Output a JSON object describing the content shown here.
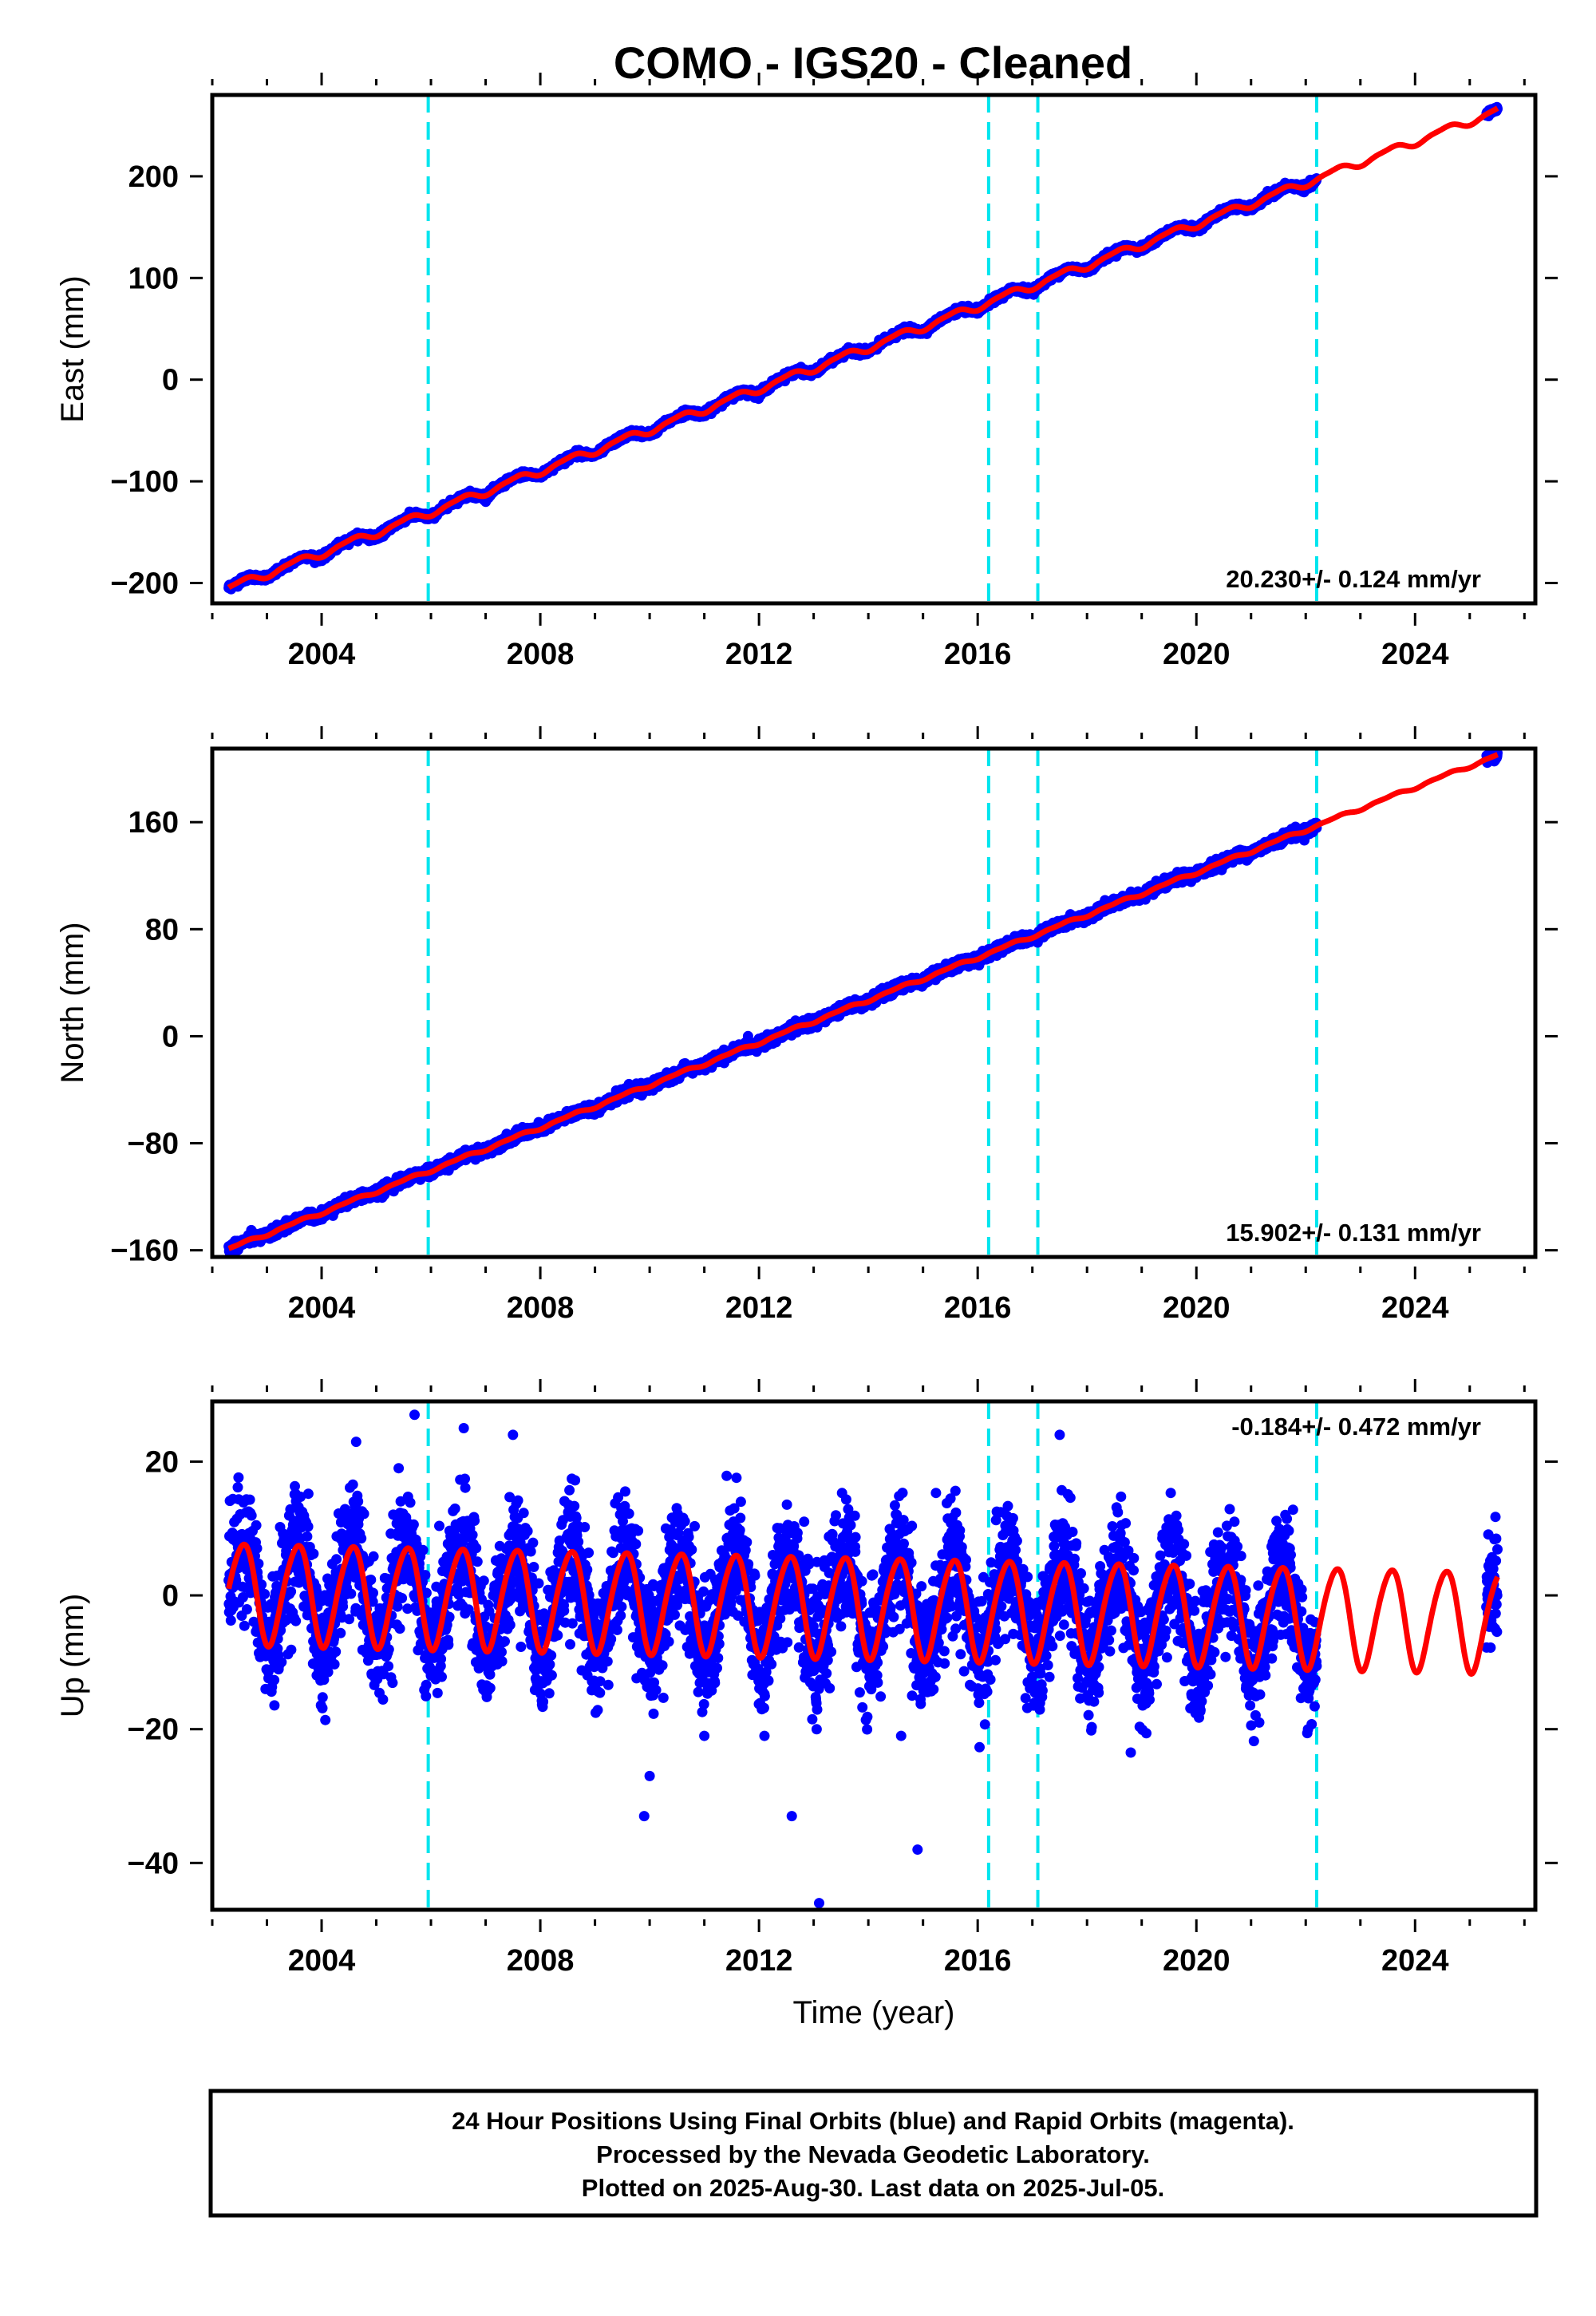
{
  "figure": {
    "title": "COMO  - IGS20 - Cleaned",
    "footer": {
      "lines": [
        "24 Hour Positions Using Final Orbits (blue) and Rapid Orbits (magenta).",
        "Processed by the Nevada Geodetic Laboratory.",
        "Plotted on 2025-Aug-30. Last data on 2025-Jul-05."
      ]
    }
  },
  "colors": {
    "data": "#0000ff",
    "model": "#ff0000",
    "break": "#00e5ee",
    "frame": "#000000"
  },
  "chart_data": [
    {
      "type": "scatter",
      "component": "east",
      "ylabel": "East (mm)",
      "xlabel": "",
      "xlim": [
        2002.0,
        2026.2
      ],
      "ylim": [
        -220,
        280
      ],
      "yticks": [
        -200,
        -100,
        0,
        100,
        200
      ],
      "xticks": [
        2004,
        2008,
        2012,
        2016,
        2020,
        2024
      ],
      "data_range": [
        2002.3,
        2025.51
      ],
      "model_range": [
        2002.3,
        2025.51
      ],
      "trend": {
        "start_value": -205,
        "rate_mm_per_yr": 20.23
      },
      "seasonal": {
        "annual_amplitude": 3.5,
        "semiannual_amplitude": 1.0
      },
      "noise": 1.5,
      "gap": [
        2022.2,
        2025.3
      ],
      "rate": "20.230+/- 0.124 mm/yr",
      "rate_position": "bottom-right",
      "breaks": [
        2005.95,
        2016.2,
        2017.1,
        2022.2
      ]
    },
    {
      "type": "scatter",
      "component": "north",
      "ylabel": "North (mm)",
      "xlabel": "",
      "xlim": [
        2002.0,
        2026.2
      ],
      "ylim": [
        -165,
        215
      ],
      "yticks": [
        -160,
        -80,
        0,
        80,
        160
      ],
      "xticks": [
        2004,
        2008,
        2012,
        2016,
        2020,
        2024
      ],
      "data_range": [
        2002.3,
        2025.51
      ],
      "model_range": [
        2002.3,
        2025.51
      ],
      "trend": {
        "start_value": -159,
        "rate_mm_per_yr": 15.902
      },
      "seasonal": {
        "annual_amplitude": 1.0,
        "semiannual_amplitude": 0.5
      },
      "noise": 1.8,
      "gap": [
        2022.2,
        2025.3
      ],
      "rate": "15.902+/- 0.131 mm/yr",
      "rate_position": "bottom-right",
      "breaks": [
        2005.95,
        2016.2,
        2017.1,
        2022.2
      ]
    },
    {
      "type": "scatter",
      "component": "up",
      "ylabel": "Up (mm)",
      "xlabel": "Time (year)",
      "xlim": [
        2002.0,
        2026.2
      ],
      "ylim": [
        -47,
        29
      ],
      "yticks": [
        -40,
        -20,
        0,
        20
      ],
      "xticks": [
        2004,
        2008,
        2012,
        2016,
        2020,
        2024
      ],
      "data_range": [
        2002.3,
        2025.51
      ],
      "model_range": [
        2002.3,
        2025.51
      ],
      "trend": {
        "start_value": 0.5,
        "rate_mm_per_yr": -0.184
      },
      "seasonal": {
        "annual_amplitude": 7.5,
        "semiannual_amplitude": 0.8
      },
      "noise": 4.5,
      "gap": [
        2022.2,
        2025.3
      ],
      "outliers": [
        [
          2005.7,
          27
        ],
        [
          2006.6,
          25
        ],
        [
          2010.0,
          -27
        ],
        [
          2009.9,
          -33
        ],
        [
          2011.0,
          -21
        ],
        [
          2012.1,
          -21
        ],
        [
          2012.6,
          -33
        ],
        [
          2013.1,
          -46
        ],
        [
          2014.9,
          -38
        ],
        [
          2014.6,
          -21
        ],
        [
          2018.8,
          -23.5
        ],
        [
          2017.5,
          24
        ],
        [
          2007.5,
          24
        ]
      ],
      "rate": "-0.184+/- 0.472 mm/yr",
      "rate_position": "top-right",
      "breaks": [
        2005.95,
        2016.2,
        2017.1,
        2022.2
      ]
    }
  ]
}
